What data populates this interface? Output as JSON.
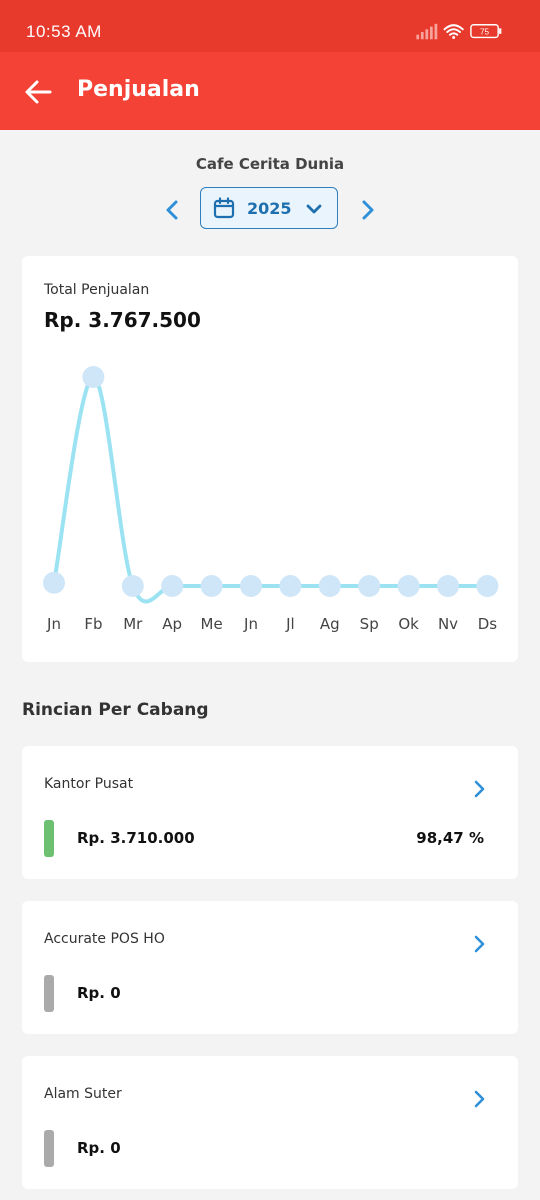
{
  "status_bar": {
    "time": "10:53 AM",
    "battery": "75"
  },
  "app_bar": {
    "title": "Penjualan"
  },
  "shop_name": "Cafe Cerita Dunia",
  "period": {
    "year": "2025"
  },
  "total_card": {
    "label": "Total Penjualan",
    "value": "Rp. 3.767.500"
  },
  "chart_data": {
    "type": "line",
    "categories": [
      "Jn",
      "Fb",
      "Mr",
      "Ap",
      "Me",
      "Jn",
      "Jl",
      "Ag",
      "Sp",
      "Ok",
      "Nv",
      "Ds"
    ],
    "series": [
      {
        "values": [
          57500,
          3710000,
          0,
          0,
          0,
          0,
          0,
          0,
          0,
          0,
          0,
          0
        ]
      }
    ],
    "ylim": [
      0,
      3710000
    ],
    "grid": false,
    "line_color": "#9be3f3",
    "point_color": "#cfe6f8"
  },
  "section_title": "Rincian Per Cabang",
  "branches": [
    {
      "name": "Kantor Pusat",
      "amount": "Rp. 3.710.000",
      "percent": "98,47 %",
      "color": "#6cc070"
    },
    {
      "name": "Accurate POS HO",
      "amount": "Rp. 0",
      "percent": "",
      "color": "#aaaaaa"
    },
    {
      "name": "Alam Suter",
      "amount": "Rp. 0",
      "percent": "",
      "color": "#aaaaaa"
    }
  ],
  "colors": {
    "primary": "#f44336",
    "statusbar": "#e8392d",
    "accent": "#2f8fd8"
  },
  "icons": {
    "back": "arrow-left-icon",
    "prev": "chevron-left-icon",
    "next": "chevron-right-icon",
    "calendar": "calendar-icon",
    "dropdown": "chevron-down-icon",
    "branch_go": "chevron-right-icon"
  }
}
